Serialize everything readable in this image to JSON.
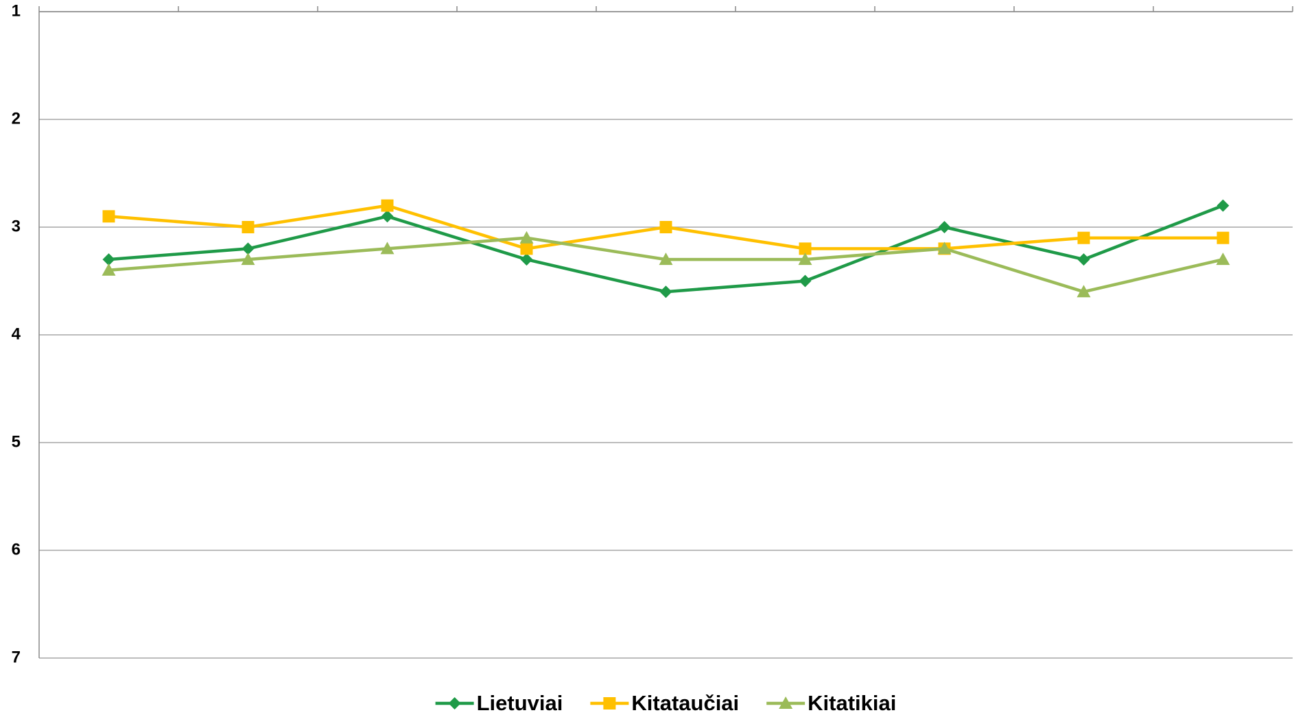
{
  "chart_data": {
    "type": "line",
    "categories": [
      null,
      null,
      null,
      null,
      null,
      null,
      null,
      null,
      null
    ],
    "series": [
      {
        "name": "Lietuviai",
        "color": "#1f9a48",
        "marker": "diamond",
        "values": [
          3.3,
          3.2,
          2.9,
          3.3,
          3.6,
          3.5,
          3.0,
          3.3,
          2.8
        ]
      },
      {
        "name": "Kitataučiai",
        "color": "#ffc000",
        "marker": "square",
        "values": [
          2.9,
          3.0,
          2.8,
          3.2,
          3.0,
          3.2,
          3.2,
          3.1,
          3.1
        ]
      },
      {
        "name": "Kitatikiai",
        "color": "#9bbb59",
        "marker": "triangle",
        "values": [
          3.4,
          3.3,
          3.2,
          3.1,
          3.3,
          3.3,
          3.2,
          3.6,
          3.3
        ]
      }
    ],
    "ylim": [
      1,
      7
    ],
    "yticks": [
      1,
      2,
      3,
      4,
      5,
      6,
      7
    ],
    "yreversed": true,
    "grid": true,
    "legend": "bottom"
  }
}
